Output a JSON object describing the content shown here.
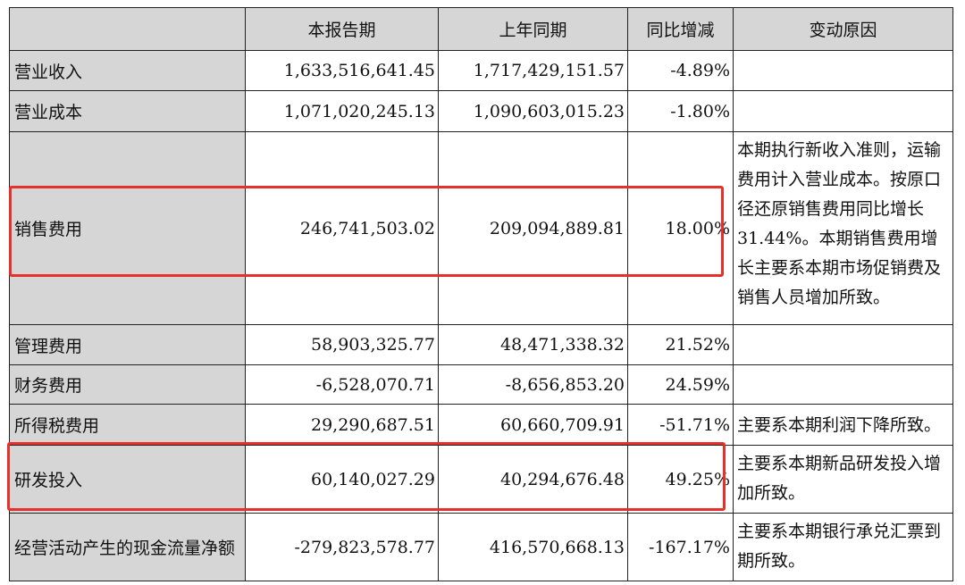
{
  "table": {
    "headers": [
      "",
      "本报告期",
      "上年同期",
      "同比增减",
      "变动原因"
    ],
    "rows": [
      {
        "item": "营业收入",
        "current": "1,633,516,641.45",
        "previous": "1,717,429,151.57",
        "change": "-4.89%",
        "reason": ""
      },
      {
        "item": "营业成本",
        "current": "1,071,020,245.13",
        "previous": "1,090,603,015.23",
        "change": "-1.80%",
        "reason": ""
      },
      {
        "item": "销售费用",
        "current": "246,741,503.02",
        "previous": "209,094,889.81",
        "change": "18.00%",
        "reason": "本期执行新收入准则，运输费用计入营业成本。按原口径还原销售费用同比增长31.44%。本期销售费用增长主要系本期市场促销费及销售人员增加所致。"
      },
      {
        "item": "管理费用",
        "current": "58,903,325.77",
        "previous": "48,471,338.32",
        "change": "21.52%",
        "reason": ""
      },
      {
        "item": "财务费用",
        "current": "-6,528,070.71",
        "previous": "-8,656,853.20",
        "change": "24.59%",
        "reason": ""
      },
      {
        "item": "所得税费用",
        "current": "29,290,687.51",
        "previous": "60,660,709.91",
        "change": "-51.71%",
        "reason": "主要系本期利润下降所致。"
      },
      {
        "item": "研发投入",
        "current": "60,140,027.29",
        "previous": "40,294,676.48",
        "change": "49.25%",
        "reason": "主要系本期新品研发投入增加所致。"
      },
      {
        "item": "经营活动产生的现金流量净额",
        "current": "-279,823,578.77",
        "previous": "416,570,668.13",
        "change": "-167.17%",
        "reason": "主要系本期银行承兑汇票到期所致。"
      }
    ]
  },
  "highlight_color": "#e8302a"
}
